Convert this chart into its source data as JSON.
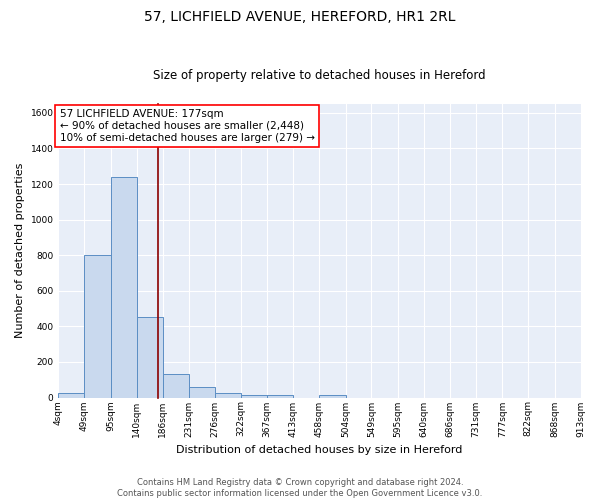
{
  "title1": "57, LICHFIELD AVENUE, HEREFORD, HR1 2RL",
  "title2": "Size of property relative to detached houses in Hereford",
  "xlabel": "Distribution of detached houses by size in Hereford",
  "ylabel": "Number of detached properties",
  "bin_edges": [
    4,
    49,
    95,
    140,
    186,
    231,
    276,
    322,
    367,
    413,
    458,
    504,
    549,
    595,
    640,
    686,
    731,
    777,
    822,
    868,
    913
  ],
  "bar_heights": [
    25,
    800,
    1240,
    450,
    130,
    60,
    25,
    15,
    15,
    0,
    15,
    0,
    0,
    0,
    0,
    0,
    0,
    0,
    0,
    0
  ],
  "bar_color": "#c9d9ee",
  "bar_edge_color": "#5b8ec4",
  "bg_color": "#e8eef8",
  "grid_color": "#ffffff",
  "redline_x": 177,
  "annotation_title": "57 LICHFIELD AVENUE: 177sqm",
  "annotation_line1": "← 90% of detached houses are smaller (2,448)",
  "annotation_line2": "10% of semi-detached houses are larger (279) →",
  "ylim": [
    0,
    1650
  ],
  "yticks": [
    0,
    200,
    400,
    600,
    800,
    1000,
    1200,
    1400,
    1600
  ],
  "footer1": "Contains HM Land Registry data © Crown copyright and database right 2024.",
  "footer2": "Contains public sector information licensed under the Open Government Licence v3.0.",
  "title1_fontsize": 10,
  "title2_fontsize": 8.5,
  "xlabel_fontsize": 8,
  "ylabel_fontsize": 8,
  "tick_fontsize": 6.5,
  "ann_fontsize": 7.5,
  "footer_fontsize": 6
}
